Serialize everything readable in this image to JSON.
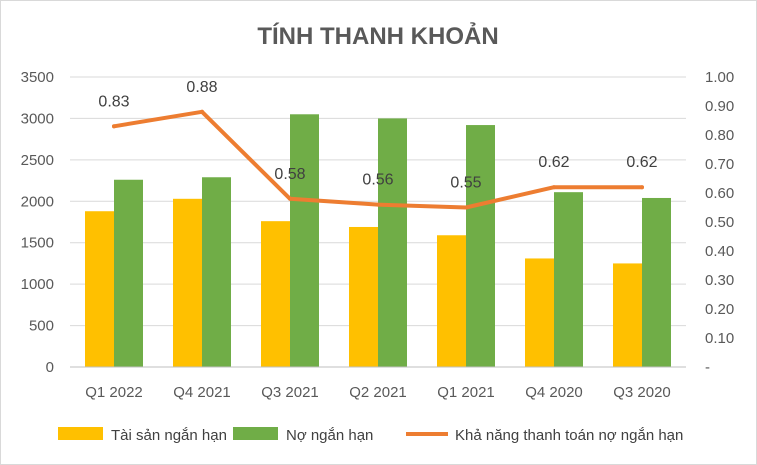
{
  "chart_data": {
    "type": "bar",
    "title": "TÍNH THANH KHOẢN",
    "categories": [
      "Q1 2022",
      "Q4 2021",
      "Q3 2021",
      "Q2 2021",
      "Q1 2021",
      "Q4 2020",
      "Q3 2020"
    ],
    "series": [
      {
        "name": "Tài sản ngắn hạn",
        "type": "bar",
        "axis": "left",
        "color": "#FFC000",
        "values": [
          1880,
          2030,
          1760,
          1690,
          1590,
          1310,
          1250
        ]
      },
      {
        "name": "Nợ ngắn hạn",
        "type": "bar",
        "axis": "left",
        "color": "#70AD47",
        "values": [
          2260,
          2290,
          3050,
          3000,
          2920,
          2110,
          2040
        ]
      },
      {
        "name": "Khả năng thanh toán nợ ngắn hạn",
        "type": "line",
        "axis": "right",
        "color": "#ED7D31",
        "values": [
          0.83,
          0.88,
          0.58,
          0.56,
          0.55,
          0.62,
          0.62
        ],
        "labels": [
          "0.83",
          "0.88",
          "0.58",
          "0.56",
          "0.55",
          "0.62",
          "0.62"
        ]
      }
    ],
    "y_left": {
      "min": 0,
      "max": 3500,
      "ticks": [
        0,
        500,
        1000,
        1500,
        2000,
        2500,
        3000,
        3500
      ],
      "tick_labels": [
        "0",
        "500",
        "1000",
        "1500",
        "2000",
        "2500",
        "3000",
        "3500"
      ]
    },
    "y_right": {
      "min": 0,
      "max": 1.0,
      "ticks": [
        0,
        0.1,
        0.2,
        0.3,
        0.4,
        0.5,
        0.6,
        0.7,
        0.8,
        0.9,
        1.0
      ],
      "tick_labels": [
        "-",
        "0.10",
        "0.20",
        "0.30",
        "0.40",
        "0.50",
        "0.60",
        "0.70",
        "0.80",
        "0.90",
        "1.00"
      ]
    },
    "grid": true,
    "legend_position": "bottom"
  }
}
